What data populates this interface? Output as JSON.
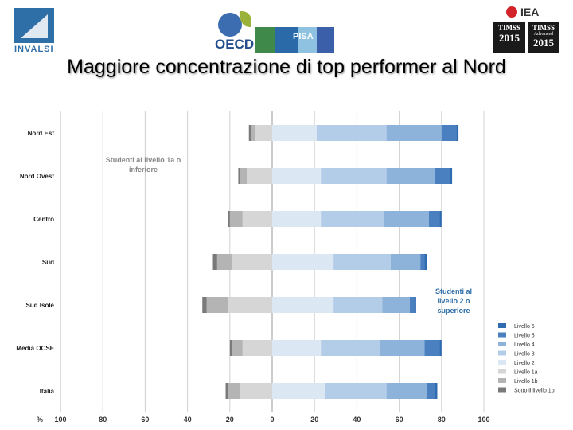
{
  "logos": {
    "invalsi": "INVALSI",
    "oecd": "OECD",
    "pisa": "PISA",
    "iea": "IEA",
    "timss1": {
      "line1": "TIMSS",
      "year": "2015"
    },
    "timss2": {
      "line1": "TIMSS",
      "line2": "Advanced",
      "year": "2015"
    }
  },
  "title": "Maggiore concentrazione di top performer al Nord",
  "annotations": {
    "lower": "Studenti al livello 1a o inferiore",
    "upper": "Studenti al livello 2 o superiore"
  },
  "chart_data": {
    "type": "bar",
    "orientation": "horizontal",
    "stacked": "diverging",
    "axis_unit_label": "%",
    "xlim": [
      -100,
      100
    ],
    "xticks": [
      -100,
      -80,
      -60,
      -40,
      -20,
      0,
      20,
      40,
      60,
      80,
      100
    ],
    "xtick_labels": [
      "100",
      "80",
      "60",
      "40",
      "20",
      "0",
      "20",
      "40",
      "60",
      "80",
      "100"
    ],
    "grid": true,
    "legend_position": "bottom-right",
    "categories": [
      "Nord Est",
      "Nord Ovest",
      "Centro",
      "Sud",
      "Sud Isole",
      "Media OCSE",
      "Italia"
    ],
    "series": [
      {
        "name": "Livello 6",
        "color": "#2e6bb0",
        "values": [
          1,
          1,
          1,
          1,
          1,
          1,
          1
        ]
      },
      {
        "name": "Livello 5",
        "color": "#4a80c0",
        "values": [
          7,
          7,
          5,
          2,
          2,
          7,
          4
        ]
      },
      {
        "name": "Livello 4",
        "color": "#8eb3da",
        "values": [
          26,
          23,
          21,
          14,
          13,
          21,
          19
        ]
      },
      {
        "name": "Livello 3",
        "color": "#b3cce8",
        "values": [
          33,
          31,
          30,
          27,
          23,
          28,
          29
        ]
      },
      {
        "name": "Livello 2",
        "color": "#dce7f4",
        "values": [
          21,
          23,
          23,
          29,
          29,
          23,
          25
        ]
      },
      {
        "name": "Livello 1a",
        "color": "#d6d6d6",
        "values": [
          8,
          12,
          14,
          19,
          21,
          14,
          15
        ]
      },
      {
        "name": "Livello 1b",
        "color": "#b4b4b4",
        "values": [
          2,
          3,
          6,
          7,
          10,
          5,
          6
        ]
      },
      {
        "name": "Sotto il livello 1b",
        "color": "#7a7a7a",
        "values": [
          1,
          1,
          1,
          2,
          2,
          1,
          1
        ]
      }
    ]
  }
}
